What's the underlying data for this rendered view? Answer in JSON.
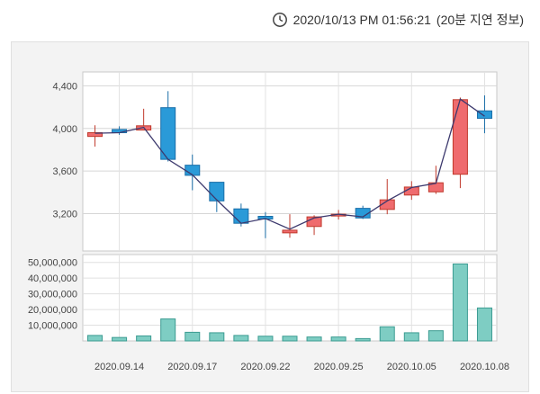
{
  "header": {
    "timestamp": "2020/10/13 PM 01:56:21",
    "delay_note": "(20분 지연 정보)",
    "icon": "clock-icon"
  },
  "colors": {
    "up": "#ef6b6e",
    "up_border": "#c0392b",
    "down": "#2a9ad8",
    "down_border": "#1a6ea8",
    "volume": "#7ecdc3",
    "volume_border": "#3c9c92",
    "line": "#3d3a6e"
  },
  "chart_data": [
    {
      "type": "candlestick",
      "title": "",
      "yticks": [
        4400,
        4000,
        3600,
        3200
      ],
      "ytick_labels": [
        "4,400",
        "4,000",
        "3,600",
        "3,200"
      ],
      "ylim": [
        2850,
        4530
      ],
      "grid": true,
      "candles": [
        {
          "open": 3925,
          "high": 4030,
          "low": 3830,
          "close": 3960
        },
        {
          "open": 3990,
          "high": 4020,
          "low": 3940,
          "close": 3960
        },
        {
          "open": 3985,
          "high": 4185,
          "low": 3985,
          "close": 4025
        },
        {
          "open": 4195,
          "high": 4350,
          "low": 3690,
          "close": 3710
        },
        {
          "open": 3655,
          "high": 3755,
          "low": 3420,
          "close": 3560
        },
        {
          "open": 3495,
          "high": 3495,
          "low": 3215,
          "close": 3320
        },
        {
          "open": 3245,
          "high": 3295,
          "low": 3080,
          "close": 3110
        },
        {
          "open": 3175,
          "high": 3215,
          "low": 2970,
          "close": 3150
        },
        {
          "open": 3020,
          "high": 3195,
          "low": 2975,
          "close": 3045
        },
        {
          "open": 3080,
          "high": 3185,
          "low": 3000,
          "close": 3170
        },
        {
          "open": 3185,
          "high": 3235,
          "low": 3145,
          "close": 3195
        },
        {
          "open": 3250,
          "high": 3275,
          "low": 3150,
          "close": 3160
        },
        {
          "open": 3240,
          "high": 3525,
          "low": 3195,
          "close": 3330
        },
        {
          "open": 3375,
          "high": 3505,
          "low": 3330,
          "close": 3450
        },
        {
          "open": 3405,
          "high": 3650,
          "low": 3385,
          "close": 3490
        },
        {
          "open": 3570,
          "high": 4290,
          "low": 3440,
          "close": 4270
        },
        {
          "open": 4165,
          "high": 4310,
          "low": 3955,
          "close": 4095
        }
      ],
      "line_values": [
        3955,
        3960,
        4010,
        3710,
        3565,
        3330,
        3110,
        3155,
        3055,
        3160,
        3195,
        3170,
        3320,
        3445,
        3485,
        4275,
        4115
      ]
    },
    {
      "type": "bar",
      "title": "",
      "yticks": [
        50000000,
        40000000,
        30000000,
        20000000,
        10000000
      ],
      "ytick_labels": [
        "50,000,000",
        "40,000,000",
        "30,000,000",
        "20,000,000",
        "10,000,000"
      ],
      "ylim": [
        0,
        55000000
      ],
      "values": [
        3500000,
        2200000,
        3200000,
        14000000,
        5500000,
        5200000,
        3500000,
        3000000,
        3000000,
        2500000,
        2500000,
        1500000,
        9000000,
        5200000,
        6500000,
        49000000,
        21000000
      ]
    }
  ],
  "x_labels": [
    "2020.09.14",
    "2020.09.17",
    "2020.09.22",
    "2020.09.25",
    "2020.10.05",
    "2020.10.08"
  ],
  "x_label_index": [
    1,
    4,
    7,
    10,
    13,
    16
  ]
}
